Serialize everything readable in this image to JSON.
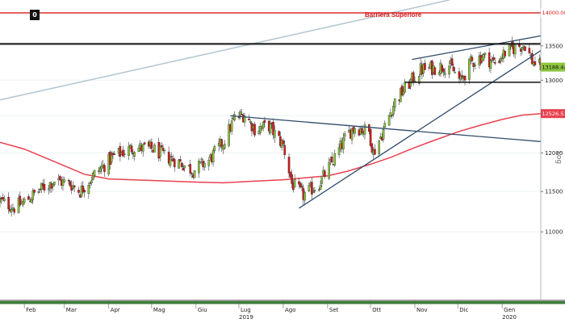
{
  "corner_badge": "0",
  "scale_label": "Log",
  "annotation": "Barriera Superiore",
  "year_labels": [
    "2019",
    "2020"
  ],
  "price_tags": {
    "barrier": "14000.0000",
    "last": "13188.4414",
    "moving_average": "12526.5164"
  },
  "colors": {
    "up_candle": "#8dc63f",
    "down_candle": "#d81a1a",
    "moving_average": "#e8414f",
    "barrier_line": "#d81a1a",
    "trend_lines": "#2f4a6a",
    "horizontal_levels": "#111111",
    "long_channel": "#b5c9d3"
  },
  "chart_data": {
    "type": "candlestick",
    "scale": "log",
    "ylim": [
      10200,
      14200
    ],
    "y_ticks": [
      11000,
      11500,
      12000,
      12500,
      13000,
      13500
    ],
    "x_ticks": [
      "Feb",
      "Mar",
      "Apr",
      "Mag",
      "Giu",
      "Lug",
      "Ago",
      "Set",
      "Ott",
      "Nov",
      "Dic",
      "Gen"
    ],
    "x_tick_dates": [
      "2019-02-01",
      "2019-03-01",
      "2019-04-01",
      "2019-05-01",
      "2019-06-01",
      "2019-07-01",
      "2019-08-01",
      "2019-09-01",
      "2019-10-01",
      "2019-11-01",
      "2019-12-01",
      "2020-01-01"
    ],
    "date_range": [
      "2019-01-15",
      "2020-01-28"
    ],
    "close_path": [
      [
        "2019-01-15",
        11380
      ],
      [
        "2019-01-25",
        11300
      ],
      [
        "2019-02-01",
        11370
      ],
      [
        "2019-02-12",
        11520
      ],
      [
        "2019-02-22",
        11640
      ],
      [
        "2019-03-05",
        11600
      ],
      [
        "2019-03-12",
        11500
      ],
      [
        "2019-03-22",
        11720
      ],
      [
        "2019-04-05",
        11960
      ],
      [
        "2019-04-18",
        12070
      ],
      [
        "2019-05-02",
        12050
      ],
      [
        "2019-05-10",
        11960
      ],
      [
        "2019-05-20",
        11880
      ],
      [
        "2019-05-30",
        11770
      ],
      [
        "2019-06-10",
        11900
      ],
      [
        "2019-06-20",
        12140
      ],
      [
        "2019-06-28",
        12470
      ],
      [
        "2019-07-05",
        12520
      ],
      [
        "2019-07-12",
        12320
      ],
      [
        "2019-07-22",
        12360
      ],
      [
        "2019-08-01",
        12100
      ],
      [
        "2019-08-07",
        11600
      ],
      [
        "2019-08-15",
        11450
      ],
      [
        "2019-08-26",
        11600
      ],
      [
        "2019-09-05",
        11900
      ],
      [
        "2019-09-15",
        12250
      ],
      [
        "2019-09-20",
        12350
      ],
      [
        "2019-09-30",
        12280
      ],
      [
        "2019-10-03",
        12000
      ],
      [
        "2019-10-10",
        12300
      ],
      [
        "2019-10-18",
        12700
      ],
      [
        "2019-10-25",
        12880
      ],
      [
        "2019-11-05",
        13150
      ],
      [
        "2019-11-15",
        13180
      ],
      [
        "2019-11-25",
        13220
      ],
      [
        "2019-12-03",
        12980
      ],
      [
        "2019-12-10",
        13250
      ],
      [
        "2019-12-18",
        13350
      ],
      [
        "2019-12-27",
        13250
      ],
      [
        "2020-01-03",
        13400
      ],
      [
        "2020-01-10",
        13480
      ],
      [
        "2020-01-17",
        13520
      ],
      [
        "2020-01-22",
        13280
      ],
      [
        "2020-01-28",
        13188
      ]
    ],
    "moving_average": [
      [
        "2019-01-15",
        12140
      ],
      [
        "2019-02-01",
        12050
      ],
      [
        "2019-02-15",
        11940
      ],
      [
        "2019-03-01",
        11830
      ],
      [
        "2019-03-15",
        11720
      ],
      [
        "2019-04-01",
        11660
      ],
      [
        "2019-05-01",
        11640
      ],
      [
        "2019-06-01",
        11620
      ],
      [
        "2019-06-20",
        11610
      ],
      [
        "2019-07-10",
        11630
      ],
      [
        "2019-08-01",
        11650
      ],
      [
        "2019-09-01",
        11700
      ],
      [
        "2019-09-15",
        11760
      ],
      [
        "2019-10-01",
        11850
      ],
      [
        "2019-10-15",
        11940
      ],
      [
        "2019-11-01",
        12070
      ],
      [
        "2019-11-15",
        12170
      ],
      [
        "2019-12-01",
        12280
      ],
      [
        "2019-12-15",
        12360
      ],
      [
        "2020-01-01",
        12450
      ],
      [
        "2020-01-15",
        12510
      ],
      [
        "2020-01-28",
        12530
      ]
    ],
    "horizontal_levels": [
      {
        "value": 14000,
        "style": "barrier"
      },
      {
        "value": 13530,
        "style": "resistance"
      },
      {
        "value": 12970,
        "style": "support"
      }
    ],
    "trend_lines": [
      {
        "from": [
          "2019-06-25",
          12500
        ],
        "to": [
          "2020-01-28",
          12150
        ]
      },
      {
        "from": [
          "2019-08-12",
          11290
        ],
        "to": [
          "2020-01-28",
          13430
        ]
      },
      {
        "from": [
          "2019-10-30",
          13300
        ],
        "to": [
          "2020-01-28",
          13650
        ]
      },
      {
        "from": [
          "2019-01-15",
          12720
        ],
        "to": [
          "2019-11-25",
          14200
        ],
        "style": "channel"
      }
    ]
  }
}
